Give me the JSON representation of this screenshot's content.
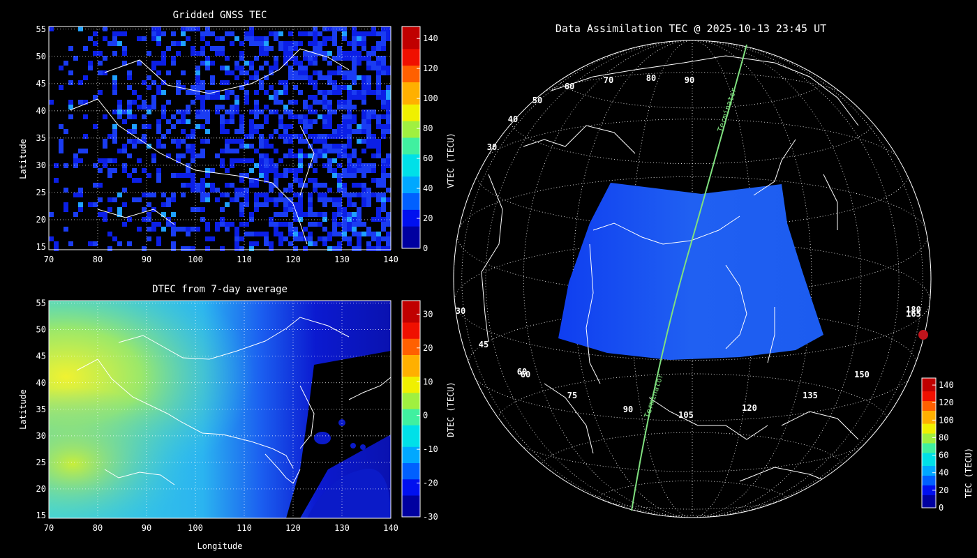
{
  "top_left": {
    "title": "Gridded GNSS TEC",
    "ylabel": "Latitude",
    "xticks": [
      "70",
      "80",
      "90",
      "100",
      "110",
      "120",
      "130",
      "140"
    ],
    "yticks": [
      "15",
      "20",
      "25",
      "30",
      "35",
      "40",
      "45",
      "50",
      "55"
    ],
    "colorbar": {
      "label": "VTEC (TECU)",
      "ticks": [
        "0",
        "20",
        "40",
        "60",
        "80",
        "100",
        "120",
        "140"
      ]
    }
  },
  "bottom_left": {
    "title": "DTEC from 7-day average",
    "ylabel": "Latitude",
    "xlabel": "Longitude",
    "xticks": [
      "70",
      "80",
      "90",
      "100",
      "110",
      "120",
      "130",
      "140"
    ],
    "yticks": [
      "15",
      "20",
      "25",
      "30",
      "35",
      "40",
      "45",
      "50",
      "55"
    ],
    "colorbar": {
      "label": "DTEC (TECU)",
      "ticks": [
        "-30",
        "-20",
        "-10",
        "0",
        "10",
        "20",
        "30"
      ]
    }
  },
  "globe": {
    "title": "Data Assimilation TEC @ 2025-10-13 23:45 UT",
    "terminator_label": "Terminator",
    "lat_labels": [
      "30",
      "45",
      "60"
    ],
    "lon_labels": [
      "60",
      "75",
      "90",
      "105",
      "120",
      "135",
      "150",
      "165",
      "180",
      "70",
      "80",
      "90",
      "30",
      "40",
      "50",
      "60"
    ],
    "colorbar": {
      "label": "TEC (TECU)",
      "ticks": [
        "0",
        "20",
        "40",
        "60",
        "80",
        "100",
        "120",
        "140"
      ]
    }
  },
  "colors": {
    "background": "#000000",
    "grid": "#ffffff",
    "terminator": "#7fe07f",
    "sun_marker": "#c0141c"
  }
}
